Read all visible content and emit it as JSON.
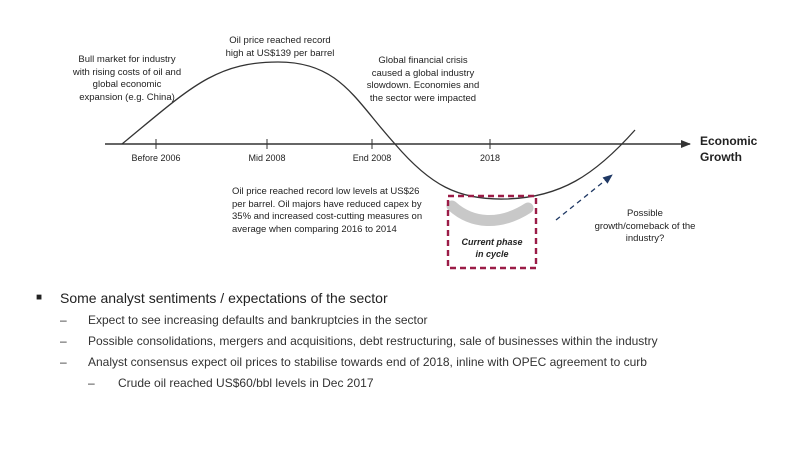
{
  "diagram": {
    "axis_title_line1": "Economic",
    "axis_title_line2": "Growth",
    "ticks": [
      "Before 2006",
      "Mid 2008",
      "End 2008",
      "2018"
    ],
    "annotations": {
      "bull_market": [
        "Bull market for industry",
        "with rising costs of oil and",
        "global economic",
        "expansion (e.g. China)"
      ],
      "record_high": [
        "Oil price reached record",
        "high at US$139 per barrel"
      ],
      "financial_crisis": [
        "Global financial crisis",
        "caused a global industry",
        "slowdown. Economies and",
        "the sector were impacted"
      ],
      "record_low": [
        "Oil price reached record low levels at US$26",
        "per barrel. Oil majors have reduced capex by",
        "35% and increased cost-cutting measures on",
        "average when comparing 2016 to 2014"
      ],
      "comeback": [
        "Possible",
        "growth/comeback of the",
        "industry?"
      ]
    },
    "current_phase": [
      "Current phase",
      "in cycle"
    ],
    "colors": {
      "curve": "#333333",
      "axis": "#333333",
      "phase_box": "#9b1c47",
      "phase_band": "#c8c8c8",
      "arrow": "#1f3864"
    }
  },
  "bullets": {
    "main": "Some analyst sentiments / expectations of the sector",
    "subs": [
      "Expect to see increasing defaults and bankruptcies in the sector",
      "Possible consolidations, mergers and acquisitions, debt restructuring, sale of businesses within the industry",
      "Analyst consensus expect oil prices to stabilise towards end of 2018, inline with OPEC agreement to curb"
    ],
    "sub_sub": "Crude oil reached US$60/bbl levels in Dec 2017",
    "main_marker": "■",
    "dash_marker": "–"
  }
}
